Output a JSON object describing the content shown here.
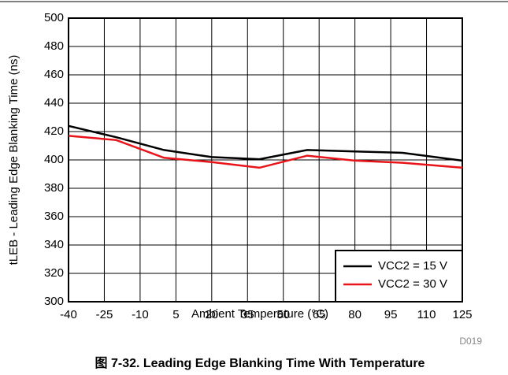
{
  "chart_data": {
    "type": "line",
    "caption": "图 7-32. Leading Edge Blanking Time With Temperature",
    "code": "D019",
    "x_label": "Ambient Temperature (°C)",
    "y_label": "tLEB - Leading Edge Blanking Time (ns)",
    "x": [
      -40,
      -20,
      0,
      20,
      40,
      60,
      80,
      100,
      125
    ],
    "series": [
      {
        "name": "VCC2 = 15 V",
        "color": "#000000",
        "values": [
          424,
          416,
          407,
          402,
          400.5,
          407,
          406,
          405,
          399.5
        ]
      },
      {
        "name": "VCC2 = 30 V",
        "color": "#e8141a",
        "values": [
          417,
          414,
          401.5,
          398.5,
          394.5,
          403,
          399.5,
          398,
          394.5
        ]
      }
    ],
    "xlim": [
      -40,
      125
    ],
    "xticks": [
      -40,
      -25,
      -10,
      5,
      20,
      35,
      50,
      65,
      80,
      95,
      110,
      125
    ],
    "ylim": [
      300,
      500
    ],
    "yticks": [
      300,
      320,
      340,
      360,
      380,
      400,
      420,
      440,
      460,
      480,
      500
    ],
    "grid": true,
    "legend": "lower right"
  }
}
